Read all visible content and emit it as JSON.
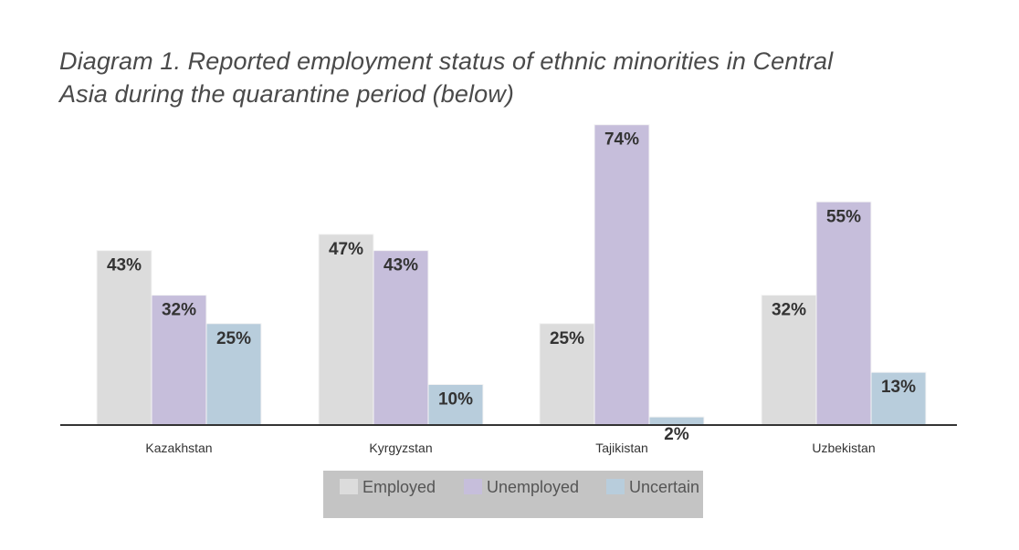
{
  "caption": {
    "line1": "Diagram 1. Reported employment status of ethnic minorities in Central",
    "line2": "Asia during the quarantine period (below)"
  },
  "colors": {
    "Employed": "#dcdcdc",
    "Unemployed": "#c6bedb",
    "Uncertain": "#b8cddc",
    "baseline": "#333333",
    "legend_bg": "#c4c4c4"
  },
  "chart_data": {
    "type": "bar",
    "categories": [
      "Kazakhstan",
      "Kyrgyzstan",
      "Tajikistan",
      "Uzbekistan"
    ],
    "series": [
      {
        "name": "Employed",
        "values": [
          43,
          47,
          25,
          32
        ],
        "labels": [
          "43%",
          "47%",
          "25%",
          "32%"
        ]
      },
      {
        "name": "Unemployed",
        "values": [
          32,
          43,
          74,
          55
        ],
        "labels": [
          "32%",
          "43%",
          "74%",
          "55%"
        ]
      },
      {
        "name": "Uncertain",
        "values": [
          25,
          10,
          2,
          13
        ],
        "labels": [
          "25%",
          "10%",
          "2%",
          "13%"
        ]
      }
    ],
    "ylim": [
      0,
      75
    ],
    "legend_position": "bottom",
    "grid": false
  }
}
